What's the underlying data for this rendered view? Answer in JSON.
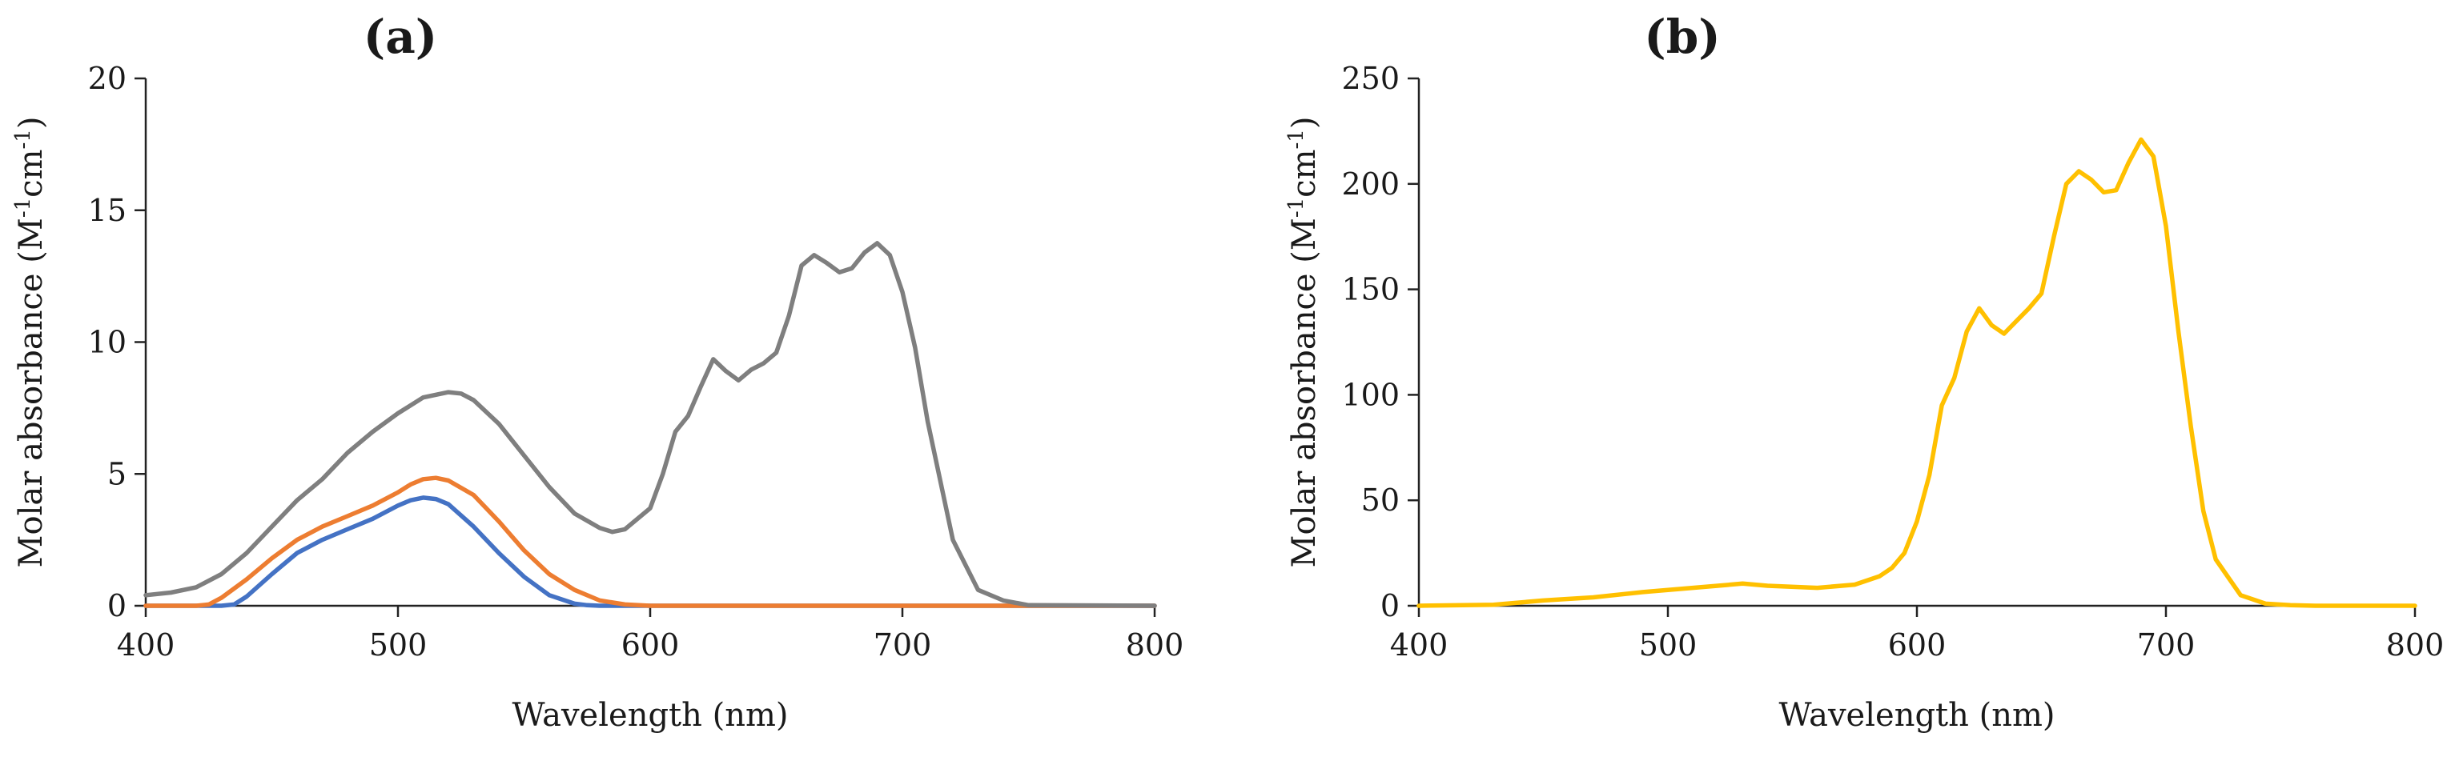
{
  "chart_data": [
    {
      "panel_label": "(a)",
      "type": "line",
      "title": "",
      "xlabel": "Wavelength (nm)",
      "ylabel": "Molar absorbance (M",
      "ylabel_sup1": "-1",
      "ylabel_mid": "cm",
      "ylabel_sup2": "-1",
      "ylabel_end": ")",
      "xlim": [
        400,
        800
      ],
      "ylim": [
        0,
        20
      ],
      "xticks": [
        400,
        500,
        600,
        700,
        800
      ],
      "xtick_labels": [
        "400",
        "500",
        "600",
        "700",
        "800"
      ],
      "yticks": [
        0,
        5,
        10,
        15,
        20
      ],
      "ytick_labels": [
        "0",
        "5",
        "10",
        "15",
        "20"
      ],
      "grid": false,
      "legend": "none",
      "series": [
        {
          "color": "#4472C4",
          "x": [
            400,
            430,
            435,
            440,
            450,
            460,
            470,
            480,
            490,
            500,
            505,
            510,
            515,
            520,
            530,
            540,
            550,
            560,
            570,
            575,
            580,
            800
          ],
          "y": [
            0,
            0,
            0.05,
            0.35,
            1.2,
            2.0,
            2.5,
            2.9,
            3.3,
            3.8,
            4.0,
            4.1,
            4.05,
            3.85,
            3.0,
            2.0,
            1.1,
            0.4,
            0.08,
            0.02,
            0,
            0
          ]
        },
        {
          "color": "#ED7D31",
          "x": [
            400,
            420,
            425,
            430,
            440,
            450,
            460,
            470,
            480,
            490,
            500,
            505,
            510,
            515,
            520,
            530,
            540,
            550,
            560,
            570,
            580,
            590,
            600,
            800
          ],
          "y": [
            0,
            0,
            0.05,
            0.3,
            1.0,
            1.8,
            2.5,
            3.0,
            3.4,
            3.8,
            4.3,
            4.6,
            4.8,
            4.85,
            4.75,
            4.2,
            3.2,
            2.1,
            1.2,
            0.6,
            0.2,
            0.05,
            0,
            0
          ]
        },
        {
          "color": "#7F7F7F",
          "x": [
            400,
            410,
            420,
            430,
            440,
            450,
            460,
            470,
            480,
            490,
            500,
            510,
            520,
            525,
            530,
            540,
            550,
            560,
            570,
            580,
            585,
            590,
            600,
            605,
            610,
            615,
            620,
            625,
            630,
            635,
            640,
            645,
            650,
            655,
            660,
            665,
            670,
            675,
            680,
            685,
            690,
            695,
            700,
            705,
            710,
            720,
            730,
            740,
            750,
            800
          ],
          "y": [
            0.4,
            0.5,
            0.7,
            1.2,
            2.0,
            3.0,
            4.0,
            4.8,
            5.8,
            6.6,
            7.3,
            7.9,
            8.1,
            8.05,
            7.8,
            6.9,
            5.7,
            4.5,
            3.5,
            2.95,
            2.8,
            2.9,
            3.7,
            5.0,
            6.6,
            7.2,
            8.3,
            9.35,
            8.9,
            8.55,
            8.95,
            9.2,
            9.6,
            11.0,
            12.9,
            13.3,
            13.0,
            12.65,
            12.8,
            13.4,
            13.75,
            13.3,
            11.9,
            9.8,
            7.0,
            2.5,
            0.6,
            0.2,
            0.02,
            0
          ]
        }
      ]
    },
    {
      "panel_label": "(b)",
      "type": "line",
      "title": "",
      "xlabel": "Wavelength (nm)",
      "ylabel": "Molar absorbance (M",
      "ylabel_sup1": "-1",
      "ylabel_mid": "cm",
      "ylabel_sup2": "-1",
      "ylabel_end": ")",
      "xlim": [
        400,
        800
      ],
      "ylim": [
        0,
        250
      ],
      "xticks": [
        400,
        500,
        600,
        700,
        800
      ],
      "xtick_labels": [
        "400",
        "500",
        "600",
        "700",
        "800"
      ],
      "yticks": [
        0,
        50,
        100,
        150,
        200,
        250
      ],
      "ytick_labels": [
        "0",
        "50",
        "100",
        "150",
        "200",
        "250"
      ],
      "grid": false,
      "legend": "none",
      "series": [
        {
          "color": "#FFC000",
          "x": [
            400,
            430,
            450,
            470,
            490,
            510,
            520,
            530,
            540,
            560,
            575,
            585,
            590,
            595,
            600,
            605,
            610,
            615,
            620,
            625,
            630,
            635,
            640,
            645,
            650,
            655,
            660,
            665,
            670,
            675,
            680,
            685,
            690,
            695,
            700,
            705,
            710,
            715,
            720,
            730,
            740,
            750,
            760,
            800
          ],
          "y": [
            0,
            0.5,
            2.5,
            4,
            6.5,
            8.5,
            9.5,
            10.5,
            9.5,
            8.5,
            10,
            14,
            18,
            25,
            40,
            62,
            95,
            108,
            130,
            141,
            133,
            129,
            135,
            141,
            148,
            175,
            200,
            206,
            202,
            196,
            197,
            210,
            221,
            213,
            180,
            130,
            85,
            45,
            22,
            5,
            1,
            0.3,
            0,
            0
          ]
        }
      ]
    }
  ]
}
